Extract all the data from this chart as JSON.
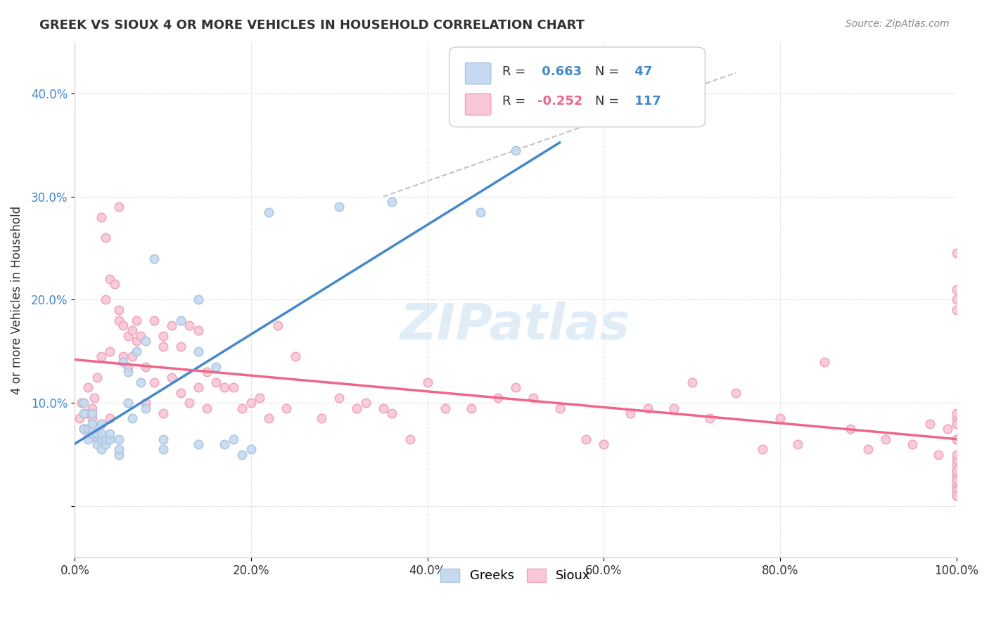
{
  "title": "GREEK VS SIOUX 4 OR MORE VEHICLES IN HOUSEHOLD CORRELATION CHART",
  "source": "Source: ZipAtlas.com",
  "xlabel_bottom": "",
  "ylabel": "4 or more Vehicles in Household",
  "x_tick_labels": [
    "0.0%",
    "20.0%",
    "40.0%",
    "60.0%",
    "80.0%",
    "100.0%"
  ],
  "y_tick_labels": [
    "10.0%",
    "20.0%",
    "30.0%",
    "40.0%"
  ],
  "x_range": [
    0.0,
    1.0
  ],
  "y_range": [
    -0.05,
    0.45
  ],
  "greek_color": "#a8c4e0",
  "greek_fill": "#c5daf0",
  "sioux_color": "#f0a0b8",
  "sioux_fill": "#f8c8d8",
  "blue_line_color": "#4488cc",
  "pink_line_color": "#ee6688",
  "legend_label_greek": "Greeks",
  "legend_label_sioux": "Sioux",
  "R_greek": 0.663,
  "N_greek": 47,
  "R_sioux": -0.252,
  "N_sioux": 117,
  "greek_x": [
    0.01,
    0.01,
    0.01,
    0.015,
    0.015,
    0.02,
    0.02,
    0.02,
    0.02,
    0.025,
    0.025,
    0.03,
    0.03,
    0.03,
    0.03,
    0.035,
    0.035,
    0.04,
    0.04,
    0.05,
    0.05,
    0.05,
    0.055,
    0.06,
    0.06,
    0.065,
    0.07,
    0.075,
    0.08,
    0.08,
    0.09,
    0.1,
    0.1,
    0.12,
    0.14,
    0.14,
    0.14,
    0.16,
    0.17,
    0.18,
    0.19,
    0.2,
    0.22,
    0.3,
    0.36,
    0.46,
    0.5
  ],
  "greek_y": [
    0.075,
    0.09,
    0.1,
    0.065,
    0.075,
    0.07,
    0.075,
    0.08,
    0.09,
    0.06,
    0.07,
    0.055,
    0.065,
    0.07,
    0.08,
    0.06,
    0.065,
    0.065,
    0.07,
    0.05,
    0.055,
    0.065,
    0.14,
    0.1,
    0.13,
    0.085,
    0.15,
    0.12,
    0.095,
    0.16,
    0.24,
    0.055,
    0.065,
    0.18,
    0.06,
    0.15,
    0.2,
    0.135,
    0.06,
    0.065,
    0.05,
    0.055,
    0.285,
    0.29,
    0.295,
    0.285,
    0.345
  ],
  "sioux_x": [
    0.005,
    0.008,
    0.01,
    0.012,
    0.015,
    0.015,
    0.018,
    0.02,
    0.02,
    0.022,
    0.025,
    0.025,
    0.03,
    0.03,
    0.03,
    0.035,
    0.035,
    0.04,
    0.04,
    0.04,
    0.045,
    0.05,
    0.05,
    0.05,
    0.055,
    0.055,
    0.06,
    0.06,
    0.065,
    0.065,
    0.07,
    0.07,
    0.075,
    0.08,
    0.08,
    0.09,
    0.09,
    0.1,
    0.1,
    0.1,
    0.11,
    0.11,
    0.12,
    0.12,
    0.13,
    0.13,
    0.14,
    0.14,
    0.15,
    0.15,
    0.16,
    0.17,
    0.18,
    0.19,
    0.2,
    0.21,
    0.22,
    0.23,
    0.24,
    0.25,
    0.28,
    0.3,
    0.32,
    0.33,
    0.35,
    0.36,
    0.38,
    0.4,
    0.42,
    0.45,
    0.48,
    0.5,
    0.52,
    0.55,
    0.58,
    0.6,
    0.63,
    0.65,
    0.68,
    0.7,
    0.72,
    0.75,
    0.78,
    0.8,
    0.82,
    0.85,
    0.88,
    0.9,
    0.92,
    0.95,
    0.97,
    0.98,
    0.99,
    1.0,
    1.0,
    1.0,
    1.0,
    1.0,
    1.0,
    1.0,
    1.0,
    1.0,
    1.0,
    1.0,
    1.0,
    1.0,
    1.0,
    1.0,
    1.0,
    1.0,
    1.0,
    1.0,
    1.0,
    1.0,
    1.0,
    1.0,
    1.0,
    1.0,
    1.0
  ],
  "sioux_y": [
    0.085,
    0.1,
    0.075,
    0.09,
    0.07,
    0.115,
    0.075,
    0.085,
    0.095,
    0.105,
    0.065,
    0.125,
    0.145,
    0.28,
    0.08,
    0.2,
    0.26,
    0.085,
    0.15,
    0.22,
    0.215,
    0.18,
    0.19,
    0.29,
    0.145,
    0.175,
    0.135,
    0.165,
    0.145,
    0.17,
    0.18,
    0.16,
    0.165,
    0.1,
    0.135,
    0.12,
    0.18,
    0.09,
    0.155,
    0.165,
    0.125,
    0.175,
    0.11,
    0.155,
    0.1,
    0.175,
    0.115,
    0.17,
    0.095,
    0.13,
    0.12,
    0.115,
    0.115,
    0.095,
    0.1,
    0.105,
    0.085,
    0.175,
    0.095,
    0.145,
    0.085,
    0.105,
    0.095,
    0.1,
    0.095,
    0.09,
    0.065,
    0.12,
    0.095,
    0.095,
    0.105,
    0.115,
    0.105,
    0.095,
    0.065,
    0.06,
    0.09,
    0.095,
    0.095,
    0.12,
    0.085,
    0.11,
    0.055,
    0.085,
    0.06,
    0.14,
    0.075,
    0.055,
    0.065,
    0.06,
    0.08,
    0.05,
    0.075,
    0.19,
    0.2,
    0.245,
    0.21,
    0.085,
    0.08,
    0.09,
    0.065,
    0.08,
    0.065,
    0.04,
    0.035,
    0.045,
    0.05,
    0.03,
    0.025,
    0.03,
    0.02,
    0.025,
    0.035,
    0.02,
    0.025,
    0.015,
    0.01,
    0.015,
    0.01
  ],
  "watermark": "ZIPatlas",
  "background_color": "#ffffff",
  "grid_color": "#dddddd"
}
